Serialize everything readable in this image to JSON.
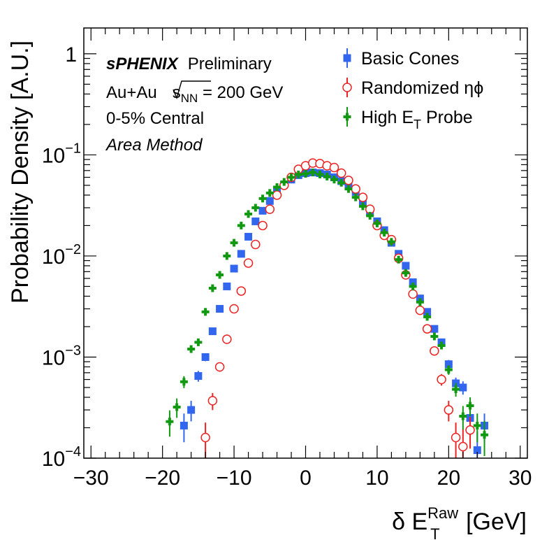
{
  "chart_data": {
    "type": "scatter",
    "xlabel": {
      "prefix": "δ E",
      "sup": "Raw",
      "sub": "T",
      "suffix": " [GeV]"
    },
    "ylabel": "Probability Density [A.U.]",
    "xlim": [
      -31,
      31
    ],
    "ylim": [
      0.0001,
      1.8
    ],
    "yscale": "log",
    "x_ticks": [
      "−30",
      "−20",
      "−10",
      "0",
      "10",
      "20",
      "30"
    ],
    "x_tick_values": [
      -30,
      -20,
      -10,
      0,
      10,
      20,
      30
    ],
    "y_ticks": [
      {
        "value": 1,
        "base": "1",
        "exp": ""
      },
      {
        "value": 0.1,
        "base": "10",
        "exp": "−1"
      },
      {
        "value": 0.01,
        "base": "10",
        "exp": "−2"
      },
      {
        "value": 0.001,
        "base": "10",
        "exp": "−3"
      },
      {
        "value": 0.0001,
        "base": "10",
        "exp": "−4"
      }
    ],
    "annotations": {
      "experiment": "sPHENIX",
      "status": "Preliminary",
      "system_prefix": "Au+Au",
      "system_energy_var": "s",
      "system_energy_sub": "NN",
      "system_energy_value": " = 200 GeV",
      "centrality": "0-5% Central",
      "method": "Area Method"
    },
    "legend_position": "top-right",
    "series": [
      {
        "name": "Basic Cones",
        "label_parts": {
          "main": "Basic Cones"
        },
        "color": "#3366ee",
        "marker": "square",
        "points": [
          [
            -17,
            0.00021
          ],
          [
            -16,
            0.0003
          ],
          [
            -15,
            0.00065
          ],
          [
            -14,
            0.001
          ],
          [
            -13,
            0.0018
          ],
          [
            -12,
            0.003
          ],
          [
            -11,
            0.005
          ],
          [
            -10,
            0.0075
          ],
          [
            -9,
            0.0105
          ],
          [
            -8,
            0.0155
          ],
          [
            -7,
            0.022
          ],
          [
            -6,
            0.028
          ],
          [
            -5,
            0.035
          ],
          [
            -4,
            0.043
          ],
          [
            -3,
            0.051
          ],
          [
            -2,
            0.057
          ],
          [
            -1,
            0.063
          ],
          [
            0,
            0.066
          ],
          [
            1,
            0.067
          ],
          [
            2,
            0.066
          ],
          [
            3,
            0.064
          ],
          [
            4,
            0.06
          ],
          [
            5,
            0.055
          ],
          [
            6,
            0.049
          ],
          [
            7,
            0.043
          ],
          [
            8,
            0.034
          ],
          [
            9,
            0.027
          ],
          [
            10,
            0.022
          ],
          [
            11,
            0.018
          ],
          [
            12,
            0.0135
          ],
          [
            13,
            0.0105
          ],
          [
            14,
            0.008
          ],
          [
            15,
            0.0055
          ],
          [
            16,
            0.0038
          ],
          [
            17,
            0.0028
          ],
          [
            18,
            0.0019
          ],
          [
            19,
            0.0014
          ],
          [
            20,
            0.00085
          ],
          [
            21,
            0.00055
          ],
          [
            22,
            0.0005
          ],
          [
            23,
            0.00025
          ],
          [
            24,
            0.00012
          ],
          [
            25,
            0.00021
          ]
        ]
      },
      {
        "name": "Randomized ηϕ",
        "label_parts": {
          "main": "Randomized ηϕ"
        },
        "color": "#ee2222",
        "marker": "open-circle",
        "points": [
          [
            -14,
            0.00016
          ],
          [
            -13,
            0.00037
          ],
          [
            -12,
            0.0008
          ],
          [
            -11,
            0.0015
          ],
          [
            -10,
            0.003
          ],
          [
            -9,
            0.0045
          ],
          [
            -8,
            0.0085
          ],
          [
            -7,
            0.013
          ],
          [
            -6,
            0.02
          ],
          [
            -5,
            0.029
          ],
          [
            -4,
            0.04
          ],
          [
            -3,
            0.05
          ],
          [
            -2,
            0.06
          ],
          [
            -1,
            0.072
          ],
          [
            0,
            0.078
          ],
          [
            1,
            0.083
          ],
          [
            2,
            0.082
          ],
          [
            3,
            0.078
          ],
          [
            4,
            0.075
          ],
          [
            5,
            0.066
          ],
          [
            6,
            0.056
          ],
          [
            7,
            0.046
          ],
          [
            8,
            0.038
          ],
          [
            9,
            0.029
          ],
          [
            10,
            0.02
          ],
          [
            11,
            0.016
          ],
          [
            12,
            0.0145
          ],
          [
            13,
            0.0095
          ],
          [
            14,
            0.0065
          ],
          [
            15,
            0.0042
          ],
          [
            16,
            0.0029
          ],
          [
            17,
            0.0019
          ],
          [
            18,
            0.00115
          ],
          [
            19,
            0.0006
          ],
          [
            20,
            0.0003
          ],
          [
            21,
            0.00016
          ],
          [
            22,
            0.00013
          ],
          [
            23,
            0.00019
          ]
        ]
      },
      {
        "name": "High E_T Probe",
        "label_parts": {
          "main": "High E",
          "sub": "T",
          "suffix": " Probe"
        },
        "color": "#119911",
        "marker": "cross",
        "points": [
          [
            -19,
            0.00023
          ],
          [
            -18,
            0.00032
          ],
          [
            -17,
            0.00057
          ],
          [
            -16,
            0.0012
          ],
          [
            -15,
            0.0014
          ],
          [
            -14,
            0.0028
          ],
          [
            -13,
            0.0048
          ],
          [
            -12,
            0.0065
          ],
          [
            -11,
            0.01
          ],
          [
            -10,
            0.0135
          ],
          [
            -9,
            0.02
          ],
          [
            -8,
            0.026
          ],
          [
            -7,
            0.03
          ],
          [
            -6,
            0.037
          ],
          [
            -5,
            0.042
          ],
          [
            -4,
            0.048
          ],
          [
            -3,
            0.054
          ],
          [
            -2,
            0.06
          ],
          [
            -1,
            0.064
          ],
          [
            0,
            0.065
          ],
          [
            1,
            0.067
          ],
          [
            2,
            0.064
          ],
          [
            3,
            0.061
          ],
          [
            4,
            0.057
          ],
          [
            5,
            0.053
          ],
          [
            6,
            0.046
          ],
          [
            7,
            0.038
          ],
          [
            8,
            0.031
          ],
          [
            9,
            0.025
          ],
          [
            10,
            0.021
          ],
          [
            11,
            0.017
          ],
          [
            12,
            0.0138
          ],
          [
            13,
            0.0092
          ],
          [
            14,
            0.0068
          ],
          [
            15,
            0.005
          ],
          [
            16,
            0.0035
          ],
          [
            17,
            0.0025
          ],
          [
            18,
            0.0016
          ],
          [
            19,
            0.0013
          ],
          [
            20,
            0.00075
          ],
          [
            21,
            0.00048
          ],
          [
            22,
            0.00026
          ],
          [
            23,
            0.00033
          ],
          [
            24,
            0.00021
          ],
          [
            25,
            0.00017
          ]
        ]
      }
    ]
  }
}
